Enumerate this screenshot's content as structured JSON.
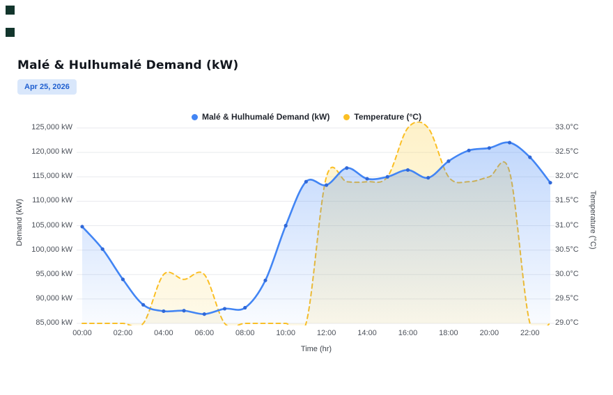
{
  "page": {
    "title": "Malé & Hulhumalé Demand (kW)",
    "date_badge": "Apr 25, 2026"
  },
  "legend": [
    {
      "label": "Malé & Hulhumalé Demand (kW)",
      "color": "#4285f4"
    },
    {
      "label": "Temperature (°C)",
      "color": "#fbbf24"
    }
  ],
  "chart_data": {
    "type": "line",
    "title": "Malé & Hulhumalé Demand (kW)",
    "xlabel": "Time (hr)",
    "x": [
      "00:00",
      "01:00",
      "02:00",
      "03:00",
      "04:00",
      "05:00",
      "06:00",
      "07:00",
      "08:00",
      "09:00",
      "10:00",
      "11:00",
      "12:00",
      "13:00",
      "14:00",
      "15:00",
      "16:00",
      "17:00",
      "18:00",
      "19:00",
      "20:00",
      "21:00",
      "22:00",
      "23:00"
    ],
    "x_tick_labels": [
      "00:00",
      "02:00",
      "04:00",
      "06:00",
      "08:00",
      "10:00",
      "12:00",
      "14:00",
      "16:00",
      "18:00",
      "20:00",
      "22:00"
    ],
    "grid": true,
    "legend_position": "top-center",
    "y_left": {
      "label": "Demand (kW)",
      "min": 85000,
      "max": 125000,
      "step": 5000,
      "tick_labels": [
        "125,000 kW",
        "120,000 kW",
        "115,000 kW",
        "110,000 kW",
        "105,000 kW",
        "100,000 kW",
        "95,000 kW",
        "90,000 kW",
        "85,000 kW"
      ]
    },
    "y_right": {
      "label": "Temperature (°C)",
      "min": 29.0,
      "max": 33.0,
      "step": 0.5,
      "tick_labels": [
        "33.0°C",
        "32.5°C",
        "32.0°C",
        "31.5°C",
        "31.0°C",
        "30.5°C",
        "30.0°C",
        "29.5°C",
        "29.0°C"
      ]
    },
    "series": [
      {
        "name": "Malé & Hulhumalé Demand (kW)",
        "axis": "left",
        "style": "solid",
        "color": "#4285f4",
        "marker_color": "#3068d8",
        "values": [
          104800,
          100200,
          94000,
          88800,
          87500,
          87600,
          86900,
          88000,
          88200,
          93800,
          105000,
          114000,
          113300,
          116800,
          114600,
          115000,
          116400,
          114800,
          118200,
          120400,
          120900,
          122000,
          119000,
          113800
        ]
      },
      {
        "name": "Temperature (°C)",
        "axis": "right",
        "style": "dashed",
        "color": "#fbbf24",
        "values": [
          29.0,
          29.0,
          29.0,
          29.0,
          30.0,
          29.9,
          30.0,
          29.0,
          29.0,
          29.0,
          29.0,
          29.0,
          32.0,
          31.9,
          31.9,
          32.0,
          33.0,
          33.0,
          32.0,
          31.9,
          32.0,
          32.1,
          29.0,
          29.0
        ]
      }
    ]
  }
}
